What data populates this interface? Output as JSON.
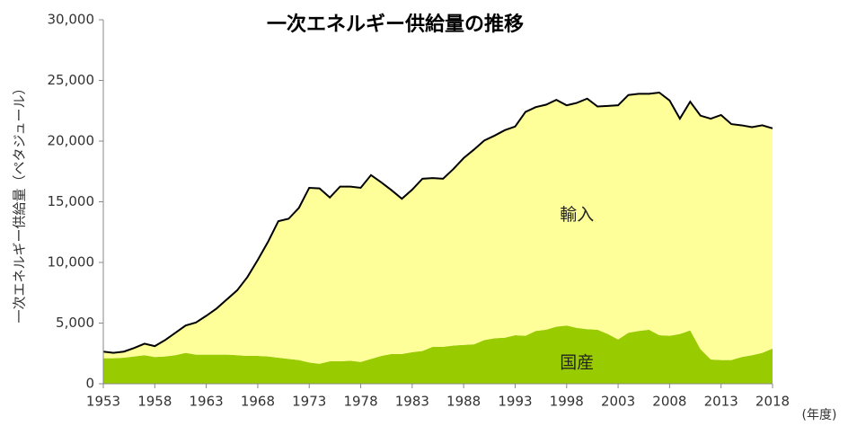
{
  "chart_data": {
    "type": "stacked_area",
    "title": "一次エネルギー供給量の推移",
    "y_label": "一次エネルギー供給量（ペタジュール）",
    "x_label": "(年度)",
    "x": [
      1953,
      1954,
      1955,
      1956,
      1957,
      1958,
      1959,
      1960,
      1961,
      1962,
      1963,
      1964,
      1965,
      1966,
      1967,
      1968,
      1969,
      1970,
      1971,
      1972,
      1973,
      1974,
      1975,
      1976,
      1977,
      1978,
      1979,
      1980,
      1981,
      1982,
      1983,
      1984,
      1985,
      1986,
      1987,
      1988,
      1989,
      1990,
      1991,
      1992,
      1993,
      1994,
      1995,
      1996,
      1997,
      1998,
      1999,
      2000,
      2001,
      2002,
      2003,
      2004,
      2005,
      2006,
      2007,
      2008,
      2009,
      2010,
      2011,
      2012,
      2013,
      2014,
      2015,
      2016,
      2017,
      2018
    ],
    "series": [
      {
        "name": "国産",
        "color": "#99cc00",
        "values": [
          2100,
          2100,
          2150,
          2250,
          2350,
          2200,
          2250,
          2350,
          2550,
          2400,
          2400,
          2400,
          2400,
          2350,
          2300,
          2300,
          2250,
          2150,
          2050,
          1950,
          1750,
          1650,
          1850,
          1850,
          1900,
          1800,
          2050,
          2300,
          2450,
          2450,
          2600,
          2700,
          3050,
          3050,
          3150,
          3200,
          3250,
          3600,
          3750,
          3800,
          4000,
          3950,
          4350,
          4450,
          4700,
          4800,
          4600,
          4500,
          4450,
          4100,
          3650,
          4200,
          4350,
          4450,
          4000,
          3950,
          4100,
          4400,
          2850,
          2000,
          1950,
          1950,
          2200,
          2350,
          2550,
          2900
        ]
      },
      {
        "name": "輸入",
        "color": "#ffff99",
        "values": [
          550,
          450,
          500,
          700,
          950,
          900,
          1350,
          1850,
          2250,
          2650,
          3200,
          3800,
          4550,
          5350,
          6500,
          7900,
          9450,
          11250,
          11550,
          12550,
          14400,
          14450,
          13500,
          14400,
          14350,
          14350,
          15150,
          14300,
          13500,
          12800,
          13400,
          14200,
          13900,
          13850,
          14550,
          15400,
          16050,
          16450,
          16700,
          17100,
          17200,
          18450,
          18450,
          18550,
          18700,
          18150,
          18550,
          19000,
          18400,
          18800,
          19300,
          19600,
          19550,
          19450,
          20000,
          19400,
          17750,
          18850,
          19250,
          19850,
          20200,
          19450,
          19100,
          18800,
          18750,
          18150
        ]
      }
    ],
    "xlim": [
      1953,
      2018
    ],
    "xticks": [
      1953,
      1958,
      1963,
      1968,
      1973,
      1978,
      1983,
      1988,
      1993,
      1998,
      2003,
      2008,
      2013,
      2018
    ],
    "ylim": [
      0,
      30000
    ],
    "yticks": [
      0,
      {
        "value": 5000,
        "label": "5,000"
      },
      {
        "value": 10000,
        "label": "10,000"
      },
      {
        "value": 15000,
        "label": "15,000"
      },
      {
        "value": 20000,
        "label": "20,000"
      },
      {
        "value": 25000,
        "label": "25,000"
      },
      {
        "value": 30000,
        "label": "30,000"
      }
    ],
    "line_color": "#000000"
  }
}
